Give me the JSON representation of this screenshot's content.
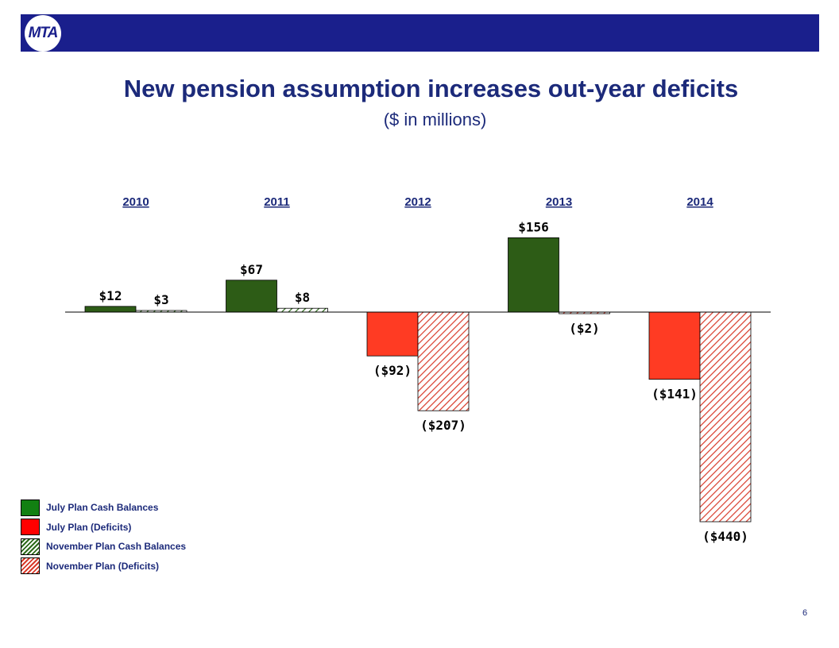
{
  "header": {
    "logo_text": "MTA",
    "title": "New pension assumption increases out-year deficits",
    "subtitle": "($ in millions)"
  },
  "colors": {
    "header_bg": "#1a1f8c",
    "title": "#1c2a7a",
    "july_cash": "#2d5c16",
    "july_deficit": "#ff3b23",
    "nov_cash_stripe": "#2d6a1a",
    "nov_deficit_stripe": "#d83a2a",
    "legend_green": "#128012"
  },
  "chart_data": {
    "type": "bar",
    "categories": [
      "2010",
      "2011",
      "2012",
      "2013",
      "2014"
    ],
    "series": [
      {
        "name": "July Plan",
        "values": [
          12,
          67,
          -92,
          156,
          -141
        ],
        "labels": [
          "$12",
          "$67",
          "($92)",
          "$156",
          "($141)"
        ]
      },
      {
        "name": "November Plan",
        "values": [
          3,
          8,
          -207,
          -2,
          -440
        ],
        "labels": [
          "$3",
          "$8",
          "($207)",
          "($2)",
          "($440)"
        ]
      }
    ],
    "ylim": [
      -440,
      156
    ],
    "legend": [
      {
        "label": "July Plan Cash Balances",
        "swatch": "solid-green"
      },
      {
        "label": "July Plan (Deficits)",
        "swatch": "solid-red"
      },
      {
        "label": "November Plan Cash Balances",
        "swatch": "hatched-green"
      },
      {
        "label": "November Plan (Deficits)",
        "swatch": "hatched-red"
      }
    ],
    "legend_position": "bottom-left"
  },
  "footer": {
    "page_number": "6"
  }
}
